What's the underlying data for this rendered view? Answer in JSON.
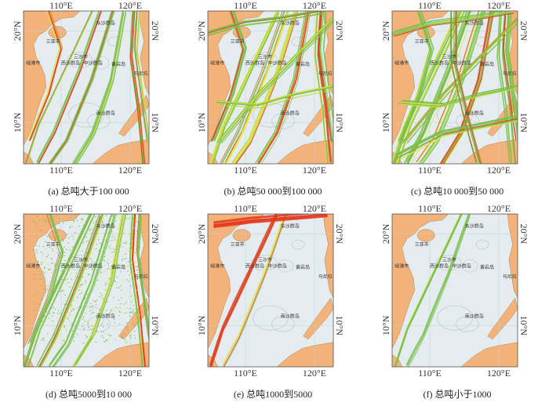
{
  "axes": {
    "lon_left": "110°E",
    "lon_right": "120°E",
    "lat_top": "20°N",
    "lat_bottom": "10°N"
  },
  "places": {
    "dongsha": "东沙群岛",
    "sanya": "三亚市",
    "sansha": "三沙市",
    "xisha": "西沙群岛",
    "zhongsha": "中沙群岛",
    "huangyan": "黄岩岛",
    "malila": "马尼拉",
    "xian": "岘港市",
    "nansha": "南沙群岛"
  },
  "panels": [
    {
      "caption": "(a) 总吨大于100 000",
      "density": 0.55,
      "heat": 0.55,
      "dots": 0
    },
    {
      "caption": "(b) 总吨50 000到100 000",
      "density": 0.8,
      "heat": 0.5,
      "dots": 0
    },
    {
      "caption": "(c) 总吨10 000到50 000",
      "density": 1.0,
      "heat": 0.45,
      "dots": 0
    },
    {
      "caption": "(d) 总吨5000到10 000",
      "density": 0.6,
      "heat": 0.5,
      "dots": 1
    },
    {
      "caption": "(e) 总吨1000到5000",
      "density": 0.15,
      "heat": 0.9,
      "dots": 0
    },
    {
      "caption": "(f) 总吨小于1000",
      "density": 0.2,
      "heat": 0.25,
      "dots": 0
    }
  ],
  "colors": {
    "land": "#f2b27a",
    "sea": "#e4ecef",
    "track_low": "#79c04b",
    "track_mid": "#dfe43a",
    "track_high": "#e43a1e"
  }
}
